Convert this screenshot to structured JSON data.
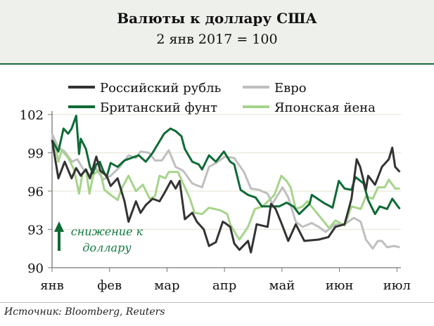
{
  "chart_data": {
    "type": "line",
    "title": "Валюты к доллару США",
    "subtitle": "2 янв 2017 = 100",
    "xlabel": "",
    "ylabel": "",
    "ylim": [
      90,
      102
    ],
    "xlim": [
      0,
      6.07
    ],
    "yticks": [
      90,
      93,
      96,
      99,
      102
    ],
    "xtick_labels": [
      "янв",
      "фев",
      "мар",
      "апр",
      "май",
      "июн",
      "июл"
    ],
    "grid": true,
    "legend_position": "top",
    "annotation": {
      "line1": "снижение к",
      "line2": "доллару"
    },
    "source": "Источник: Bloomberg, Reuters",
    "series": [
      {
        "name": "Российский рубль",
        "color": "#333333",
        "points": [
          [
            0,
            100
          ],
          [
            0.11,
            97
          ],
          [
            0.22,
            98.3
          ],
          [
            0.34,
            97
          ],
          [
            0.42,
            97.8
          ],
          [
            0.5,
            97.2
          ],
          [
            0.59,
            97.7
          ],
          [
            0.66,
            97
          ],
          [
            0.77,
            98.7
          ],
          [
            0.84,
            97.6
          ],
          [
            0.95,
            97.2
          ],
          [
            1.02,
            96.4
          ],
          [
            1.14,
            97
          ],
          [
            1.26,
            95.2
          ],
          [
            1.33,
            93.6
          ],
          [
            1.46,
            95.2
          ],
          [
            1.54,
            94.3
          ],
          [
            1.63,
            94.9
          ],
          [
            1.75,
            95.4
          ],
          [
            1.87,
            95.2
          ],
          [
            1.95,
            95.8
          ],
          [
            2.07,
            96.8
          ],
          [
            2.15,
            96.2
          ],
          [
            2.22,
            96.8
          ],
          [
            2.31,
            93.8
          ],
          [
            2.44,
            94.3
          ],
          [
            2.52,
            93.6
          ],
          [
            2.64,
            93
          ],
          [
            2.73,
            91.7
          ],
          [
            2.85,
            92
          ],
          [
            2.97,
            93.6
          ],
          [
            3.01,
            93.5
          ],
          [
            3.1,
            93.2
          ],
          [
            3.17,
            91.9
          ],
          [
            3.26,
            91.4
          ],
          [
            3.41,
            92.1
          ],
          [
            3.46,
            91.2
          ],
          [
            3.56,
            93.4
          ],
          [
            3.75,
            93.2
          ],
          [
            3.81,
            95
          ],
          [
            3.89,
            94.6
          ],
          [
            3.99,
            93.5
          ],
          [
            4.11,
            92.1
          ],
          [
            4.24,
            93.4
          ],
          [
            4.39,
            92.1
          ],
          [
            4.64,
            92.2
          ],
          [
            4.81,
            92.4
          ],
          [
            4.93,
            93.2
          ],
          [
            5.09,
            93.4
          ],
          [
            5.21,
            95.4
          ],
          [
            5.3,
            98.5
          ],
          [
            5.36,
            97.9
          ],
          [
            5.46,
            96.1
          ],
          [
            5.5,
            97.2
          ],
          [
            5.62,
            96.5
          ],
          [
            5.74,
            97.9
          ],
          [
            5.86,
            98.5
          ],
          [
            5.92,
            99.4
          ],
          [
            5.97,
            97.9
          ],
          [
            6.05,
            97.5
          ]
        ]
      },
      {
        "name": "Евро",
        "color": "#bfbfbf",
        "points": [
          [
            0,
            100
          ],
          [
            0.01,
            100.4
          ],
          [
            0.11,
            99.4
          ],
          [
            0.22,
            99.1
          ],
          [
            0.35,
            98.3
          ],
          [
            0.44,
            98.5
          ],
          [
            0.53,
            97.8
          ],
          [
            0.65,
            97.2
          ],
          [
            0.75,
            97.9
          ],
          [
            0.89,
            96.9
          ],
          [
            1.02,
            97.2
          ],
          [
            1.18,
            97.9
          ],
          [
            1.33,
            98.8
          ],
          [
            1.46,
            98.6
          ],
          [
            1.54,
            99.1
          ],
          [
            1.69,
            99
          ],
          [
            1.79,
            98.4
          ],
          [
            1.91,
            98.4
          ],
          [
            2.03,
            99.2
          ],
          [
            2.15,
            97.9
          ],
          [
            2.28,
            97.6
          ],
          [
            2.44,
            96.6
          ],
          [
            2.61,
            96.3
          ],
          [
            2.73,
            97.9
          ],
          [
            2.85,
            98.2
          ],
          [
            3.01,
            98.7
          ],
          [
            3.17,
            98.6
          ],
          [
            3.34,
            97.5
          ],
          [
            3.46,
            96.2
          ],
          [
            3.6,
            96.1
          ],
          [
            3.75,
            95.8
          ],
          [
            3.83,
            95
          ],
          [
            4.01,
            96.3
          ],
          [
            4.11,
            95.5
          ],
          [
            4.24,
            93.6
          ],
          [
            4.36,
            93.2
          ],
          [
            4.52,
            93.5
          ],
          [
            4.64,
            93.2
          ],
          [
            4.76,
            92.8
          ],
          [
            4.93,
            93.4
          ],
          [
            5.09,
            93.4
          ],
          [
            5.25,
            93.9
          ],
          [
            5.37,
            93.6
          ],
          [
            5.46,
            92.2
          ],
          [
            5.58,
            91.5
          ],
          [
            5.67,
            92.1
          ],
          [
            5.74,
            92.1
          ],
          [
            5.83,
            91.6
          ],
          [
            5.95,
            91.7
          ],
          [
            6.05,
            91.6
          ]
        ]
      },
      {
        "name": "Британский фунт",
        "color": "#0e6b36",
        "points": [
          [
            0,
            100
          ],
          [
            0.11,
            99.1
          ],
          [
            0.2,
            100.9
          ],
          [
            0.28,
            100.5
          ],
          [
            0.34,
            100.9
          ],
          [
            0.42,
            101.9
          ],
          [
            0.47,
            98.9
          ],
          [
            0.5,
            100.1
          ],
          [
            0.59,
            99.3
          ],
          [
            0.66,
            97.9
          ],
          [
            0.71,
            97.4
          ],
          [
            0.77,
            98.1
          ],
          [
            0.83,
            98.3
          ],
          [
            0.89,
            97.6
          ],
          [
            0.95,
            97.1
          ],
          [
            1.02,
            98.2
          ],
          [
            1.14,
            97.9
          ],
          [
            1.26,
            98.4
          ],
          [
            1.38,
            98.6
          ],
          [
            1.51,
            98.8
          ],
          [
            1.63,
            98.3
          ],
          [
            1.75,
            99
          ],
          [
            1.87,
            99.9
          ],
          [
            1.95,
            100.5
          ],
          [
            2.06,
            100.9
          ],
          [
            2.15,
            100.7
          ],
          [
            2.25,
            100.3
          ],
          [
            2.31,
            99.3
          ],
          [
            2.44,
            98.3
          ],
          [
            2.55,
            98.1
          ],
          [
            2.61,
            97.7
          ],
          [
            2.73,
            98.8
          ],
          [
            2.85,
            98.3
          ],
          [
            2.99,
            99.1
          ],
          [
            3.1,
            98.3
          ],
          [
            3.17,
            98.1
          ],
          [
            3.28,
            96.1
          ],
          [
            3.41,
            95.7
          ],
          [
            3.54,
            95.5
          ],
          [
            3.65,
            94.8
          ],
          [
            3.83,
            94.8
          ],
          [
            3.95,
            94.8
          ],
          [
            4.08,
            95.1
          ],
          [
            4.2,
            94.8
          ],
          [
            4.3,
            94.2
          ],
          [
            4.39,
            94.6
          ],
          [
            4.48,
            95
          ],
          [
            4.52,
            95.7
          ],
          [
            4.72,
            95.1
          ],
          [
            4.88,
            94.7
          ],
          [
            4.99,
            96.8
          ],
          [
            5.09,
            96.2
          ],
          [
            5.21,
            96.1
          ],
          [
            5.28,
            97.1
          ],
          [
            5.42,
            96.6
          ],
          [
            5.5,
            95.3
          ],
          [
            5.62,
            94.2
          ],
          [
            5.7,
            94.8
          ],
          [
            5.83,
            94.6
          ],
          [
            5.92,
            95.4
          ],
          [
            6.05,
            94.6
          ]
        ]
      },
      {
        "name": "Японская йена",
        "color": "#a6d48a",
        "points": [
          [
            0,
            100
          ],
          [
            0.05,
            99.7
          ],
          [
            0.11,
            98.3
          ],
          [
            0.17,
            99.2
          ],
          [
            0.28,
            98.6
          ],
          [
            0.38,
            97.7
          ],
          [
            0.47,
            95.8
          ],
          [
            0.53,
            97.4
          ],
          [
            0.59,
            97.7
          ],
          [
            0.65,
            95.8
          ],
          [
            0.72,
            97.3
          ],
          [
            0.83,
            97.7
          ],
          [
            0.91,
            96.1
          ],
          [
            1.05,
            95.6
          ],
          [
            1.14,
            95.3
          ],
          [
            1.21,
            96.2
          ],
          [
            1.33,
            97.2
          ],
          [
            1.46,
            96
          ],
          [
            1.58,
            96.5
          ],
          [
            1.7,
            95.4
          ],
          [
            1.79,
            95.6
          ],
          [
            1.87,
            97.2
          ],
          [
            1.97,
            97
          ],
          [
            2.03,
            97.5
          ],
          [
            2.19,
            97.5
          ],
          [
            2.28,
            96.6
          ],
          [
            2.4,
            95.4
          ],
          [
            2.48,
            94.3
          ],
          [
            2.61,
            94.2
          ],
          [
            2.73,
            94.7
          ],
          [
            2.93,
            94.5
          ],
          [
            3.05,
            94.2
          ],
          [
            3.1,
            93.4
          ],
          [
            3.23,
            92.4
          ],
          [
            3.26,
            92.2
          ],
          [
            3.41,
            93.2
          ],
          [
            3.53,
            94.6
          ],
          [
            3.66,
            94.8
          ],
          [
            3.78,
            95.3
          ],
          [
            3.87,
            95.7
          ],
          [
            3.99,
            97.2
          ],
          [
            4.08,
            96.8
          ],
          [
            4.15,
            96.3
          ],
          [
            4.24,
            94.6
          ],
          [
            4.36,
            94.8
          ],
          [
            4.44,
            95.2
          ],
          [
            4.57,
            94.5
          ],
          [
            4.82,
            93.1
          ],
          [
            4.93,
            93.7
          ],
          [
            5.09,
            93.3
          ],
          [
            5.21,
            94.8
          ],
          [
            5.37,
            94.6
          ],
          [
            5.46,
            95.6
          ],
          [
            5.58,
            95.4
          ],
          [
            5.67,
            96.3
          ],
          [
            5.79,
            96.3
          ],
          [
            5.86,
            96.9
          ],
          [
            5.97,
            96.2
          ],
          [
            6.05,
            96.2
          ]
        ]
      }
    ]
  }
}
